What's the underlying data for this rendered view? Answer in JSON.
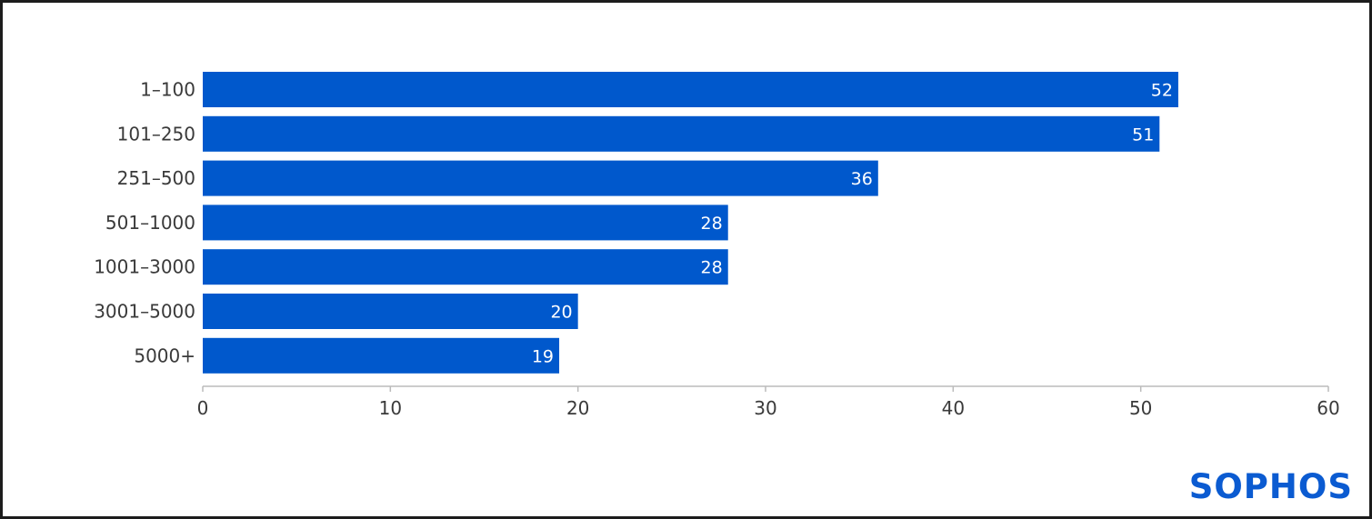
{
  "colors": {
    "bar": "#0058cc",
    "axis": "#bbbbbb",
    "text": "#3a3a3a",
    "value_text": "#ffffff",
    "logo": "#0b5bd1"
  },
  "logo": {
    "text": "SOPHOS"
  },
  "chart_data": {
    "type": "bar",
    "orientation": "horizontal",
    "categories": [
      "1–100",
      "101–250",
      "251–500",
      "501–1000",
      "1001–3000",
      "3001–5000",
      "5000+"
    ],
    "values": [
      52,
      51,
      36,
      28,
      28,
      20,
      19
    ],
    "value_labels": [
      "52",
      "51",
      "36",
      "28",
      "28",
      "20",
      "19"
    ],
    "xlim": [
      0,
      60
    ],
    "xticks": [
      "0",
      "10",
      "20",
      "30",
      "40",
      "50",
      "60"
    ],
    "title": "",
    "xlabel": "",
    "ylabel": "",
    "grid": false,
    "legend": "none"
  }
}
